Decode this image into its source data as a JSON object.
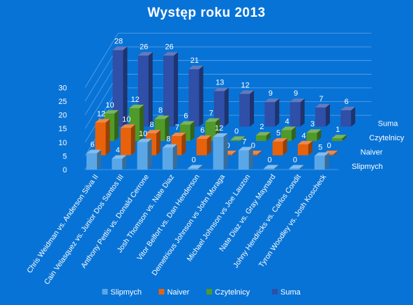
{
  "chart_data": {
    "type": "bar",
    "title": "Występ roku 2013",
    "categories": [
      "Chris Weidman vs. Anderson Silva II",
      "Cain Velasquez vs. Junior Dos Santos III",
      "Anthony Pettis vs. Donald Cerrone",
      "Josh Thomson vs. Nate Diaz",
      "Vitor Belfort vs. Dan Henderson",
      "Demetrious Johnson vs John Moraga",
      "Michael Johnson vs Joe Lauzon",
      "Nate Diaz vs. Gray Maynard",
      "Johny Hendricks vs. Carlos Condit",
      "Tyron Woodley vs. Josh Koscheck"
    ],
    "series": [
      {
        "name": "Slipmych",
        "color": "#5aa7e8",
        "values": [
          6,
          4,
          10,
          8,
          0,
          12,
          7,
          0,
          0,
          5
        ]
      },
      {
        "name": "Naiver",
        "color": "#e8620c",
        "values": [
          12,
          10,
          8,
          7,
          6,
          0,
          0,
          5,
          4,
          0
        ]
      },
      {
        "name": "Czytelnicy",
        "color": "#4f9a28",
        "values": [
          10,
          12,
          8,
          6,
          7,
          0,
          2,
          4,
          3,
          1
        ]
      },
      {
        "name": "Suma",
        "color": "#2f4fa8",
        "values": [
          28,
          26,
          26,
          21,
          13,
          12,
          9,
          9,
          7,
          6
        ]
      }
    ],
    "y_ticks": [
      "0",
      "5",
      "10",
      "15",
      "20",
      "25",
      "30"
    ],
    "ylim": [
      0,
      30
    ],
    "grid": true,
    "legend_position": "bottom"
  }
}
